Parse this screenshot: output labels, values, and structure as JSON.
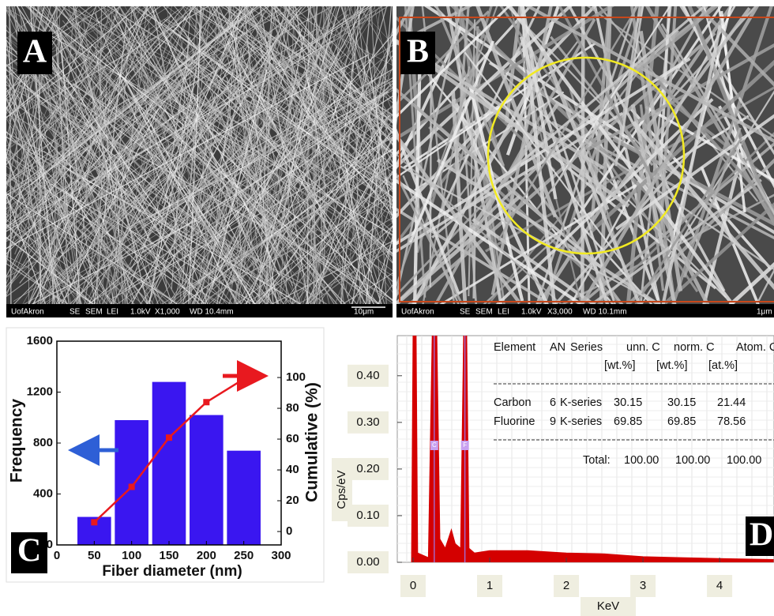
{
  "panels": [
    {
      "label": "A",
      "info": [
        "UofAkron",
        "SE",
        "SEM",
        "LEI",
        "1.0kV",
        "X1,000",
        "WD 10.4mm",
        "10μm"
      ]
    },
    {
      "label": "B",
      "info": [
        "UofAkron",
        "SE",
        "SEM",
        "LEI",
        "1.0kV",
        "X3,000",
        "WD 10.1mm",
        "1μm"
      ]
    },
    {
      "label": "C"
    },
    {
      "label": "D"
    }
  ],
  "chart_data": [
    {
      "type": "bar",
      "x_label": "Fiber diameter (nm)",
      "y_label": "Frequency",
      "y2_label": "Cumulative (%)",
      "x": [
        50,
        100,
        150,
        200,
        250
      ],
      "series": [
        {
          "type": "bar",
          "color": "#3a16f0",
          "values": [
            220,
            980,
            1280,
            1020,
            740
          ]
        },
        {
          "type": "line",
          "axis": "y2",
          "color": "#e8191f",
          "values": [
            6,
            29,
            61,
            84,
            99
          ]
        }
      ],
      "xlim": [
        0,
        300
      ],
      "xticks": [
        0,
        50,
        100,
        150,
        200,
        250,
        300
      ],
      "ylim": [
        0,
        1600
      ],
      "yticks": [
        0,
        400,
        800,
        1200,
        1600
      ],
      "y2lim": [
        -8.7,
        123.6
      ],
      "y2ticks": [
        0,
        20,
        40,
        60,
        80,
        100
      ]
    },
    {
      "type": "area",
      "x_label": "KeV",
      "y_label": "Cps/eV",
      "color": "#d40000",
      "grid": true,
      "x": [
        -0.02,
        0.0,
        0.04,
        0.06,
        0.2,
        0.25,
        0.31,
        0.35,
        0.42,
        0.5,
        0.55,
        0.62,
        0.66,
        0.7,
        0.73,
        0.8,
        1.0,
        1.5,
        2.0,
        2.5,
        3.0,
        3.5,
        4.0,
        4.7
      ],
      "values": [
        0.0,
        0.49,
        0.49,
        0.02,
        0.01,
        0.49,
        0.49,
        0.05,
        0.03,
        0.07,
        0.04,
        0.03,
        0.49,
        0.49,
        0.03,
        0.02,
        0.025,
        0.025,
        0.02,
        0.018,
        0.012,
        0.01,
        0.008,
        0.006
      ],
      "peaks": [
        {
          "label": "C",
          "x": 0.277
        },
        {
          "label": "F",
          "x": 0.677
        }
      ],
      "xlim": [
        -0.206,
        4.71
      ],
      "xticks": [
        0,
        1,
        2,
        3,
        4
      ],
      "ylim": [
        0,
        0.486
      ],
      "yticks": [
        {
          "value": 0,
          "label": "0.00"
        },
        {
          "value": 0.1,
          "label": "0.10"
        },
        {
          "value": 0.2,
          "label": "0.20"
        },
        {
          "value": 0.3,
          "label": "0.30"
        },
        {
          "value": 0.4,
          "label": "0.40"
        }
      ],
      "table": {
        "header": [
          "Element",
          "AN",
          "Series",
          "unn. C",
          "norm. C",
          "Atom. C"
        ],
        "units": [
          "[wt.%]",
          "[wt.%]",
          "[at.%]"
        ],
        "rows": [
          [
            "Carbon",
            "6",
            "K-series",
            "30.15",
            "30.15",
            "21.44"
          ],
          [
            "Fluorine",
            "9",
            "K-series",
            "69.85",
            "69.85",
            "78.56"
          ]
        ],
        "total": [
          "Total:",
          "100.00",
          "100.00",
          "100.00"
        ]
      }
    }
  ]
}
